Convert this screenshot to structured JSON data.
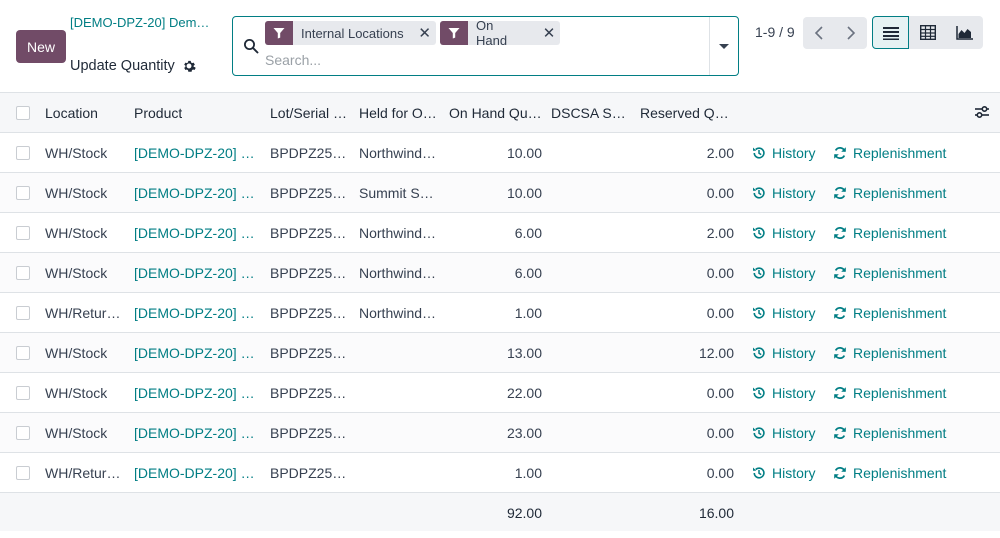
{
  "control_panel": {
    "new_label": "New",
    "breadcrumb_parent": "[DEMO-DPZ-20] Dem…",
    "breadcrumb_current": "Update Quantity",
    "search": {
      "facets": [
        "Internal Locations",
        "On Hand"
      ],
      "placeholder": "Search..."
    },
    "pager": "1-9 / 9"
  },
  "columns": [
    "Location",
    "Product",
    "Lot/Serial …",
    "Held for O…",
    "On Hand Qu…",
    "DSCSA S…",
    "Reserved Q…"
  ],
  "rows": [
    {
      "location": "WH/Stock",
      "product": "[DEMO-DPZ-20] …",
      "lot": "BPDPZ25…",
      "held": "Northwind…",
      "on_hand": "10.00",
      "dscsa": "",
      "reserved": "2.00",
      "history": "History",
      "replenishment": "Replenishment"
    },
    {
      "location": "WH/Stock",
      "product": "[DEMO-DPZ-20] …",
      "lot": "BPDPZ25…",
      "held": "Summit S…",
      "on_hand": "10.00",
      "dscsa": "",
      "reserved": "0.00",
      "history": "History",
      "replenishment": "Replenishment"
    },
    {
      "location": "WH/Stock",
      "product": "[DEMO-DPZ-20] …",
      "lot": "BPDPZ25…",
      "held": "Northwind…",
      "on_hand": "6.00",
      "dscsa": "",
      "reserved": "2.00",
      "history": "History",
      "replenishment": "Replenishment"
    },
    {
      "location": "WH/Stock",
      "product": "[DEMO-DPZ-20] …",
      "lot": "BPDPZ25…",
      "held": "Northwind…",
      "on_hand": "6.00",
      "dscsa": "",
      "reserved": "0.00",
      "history": "History",
      "replenishment": "Replenishment"
    },
    {
      "location": "WH/Retur…",
      "product": "[DEMO-DPZ-20] …",
      "lot": "BPDPZ25…",
      "held": "Northwind…",
      "on_hand": "1.00",
      "dscsa": "",
      "reserved": "0.00",
      "history": "History",
      "replenishment": "Replenishment"
    },
    {
      "location": "WH/Stock",
      "product": "[DEMO-DPZ-20] …",
      "lot": "BPDPZ25…",
      "held": "",
      "on_hand": "13.00",
      "dscsa": "",
      "reserved": "12.00",
      "history": "History",
      "replenishment": "Replenishment"
    },
    {
      "location": "WH/Stock",
      "product": "[DEMO-DPZ-20] …",
      "lot": "BPDPZ25…",
      "held": "",
      "on_hand": "22.00",
      "dscsa": "",
      "reserved": "0.00",
      "history": "History",
      "replenishment": "Replenishment"
    },
    {
      "location": "WH/Stock",
      "product": "[DEMO-DPZ-20] …",
      "lot": "BPDPZ25…",
      "held": "",
      "on_hand": "23.00",
      "dscsa": "",
      "reserved": "0.00",
      "history": "History",
      "replenishment": "Replenishment"
    },
    {
      "location": "WH/Retur…",
      "product": "[DEMO-DPZ-20] …",
      "lot": "BPDPZ25…",
      "held": "",
      "on_hand": "1.00",
      "dscsa": "",
      "reserved": "0.00",
      "history": "History",
      "replenishment": "Replenishment"
    }
  ],
  "totals": {
    "on_hand": "92.00",
    "reserved": "16.00"
  },
  "colors": {
    "primary": "#714b67",
    "link": "#017e84"
  },
  "icons": {
    "search": "search-icon",
    "filter": "filter-icon",
    "history": "history-icon",
    "replenishment": "refresh-icon",
    "settings": "gear-icon"
  }
}
